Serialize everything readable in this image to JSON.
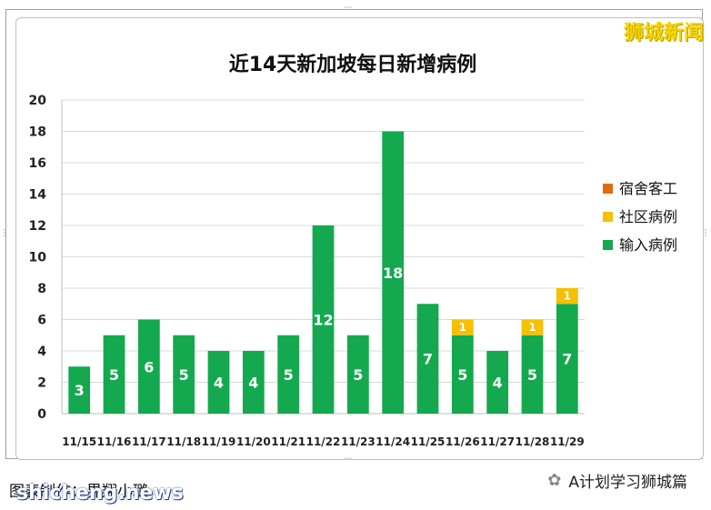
{
  "watermark_top": "狮城新闻",
  "credit": "图表制作：界翔小璐",
  "site_watermark": "shicheng.news",
  "account": {
    "icon": "wechat-icon",
    "name": "A计划学习狮城篇"
  },
  "colors": {
    "import": "#14a94e",
    "community": "#f5c000",
    "dorm": "#e36c0a"
  },
  "chart_data": {
    "type": "bar",
    "stacked": true,
    "title": "近14天新加坡每日新增病例",
    "categories": [
      "11/15",
      "11/16",
      "11/17",
      "11/18",
      "11/19",
      "11/20",
      "11/21",
      "11/22",
      "11/23",
      "11/24",
      "11/25",
      "11/26",
      "11/27",
      "11/28",
      "11/29"
    ],
    "series": [
      {
        "name": "输入病例",
        "values": [
          3,
          5,
          6,
          5,
          4,
          4,
          5,
          12,
          5,
          18,
          7,
          5,
          4,
          5,
          7
        ]
      },
      {
        "name": "社区病例",
        "values": [
          0,
          0,
          0,
          0,
          0,
          0,
          0,
          0,
          0,
          0,
          0,
          1,
          0,
          1,
          1
        ]
      },
      {
        "name": "宿舍客工",
        "values": [
          0,
          0,
          0,
          0,
          0,
          0,
          0,
          0,
          0,
          0,
          0,
          0,
          0,
          0,
          0
        ]
      }
    ],
    "ylim": [
      0,
      20
    ],
    "yticks": [
      0,
      2,
      4,
      6,
      8,
      10,
      12,
      14,
      16,
      18,
      20
    ],
    "grid": true,
    "legend_position": "right",
    "legend_order": [
      "宿舍客工",
      "社区病例",
      "输入病例"
    ]
  }
}
